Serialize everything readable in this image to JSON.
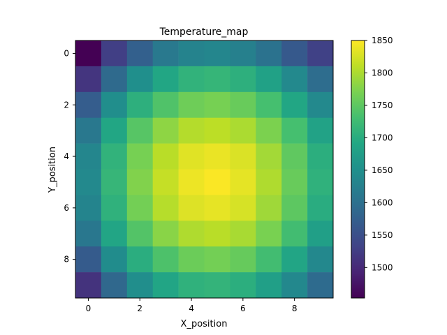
{
  "chart_data": {
    "type": "heatmap",
    "title": "Temperature_map",
    "xlabel": "X_position",
    "ylabel": "Y_position",
    "x_ticks": [
      0,
      2,
      4,
      6,
      8
    ],
    "y_ticks": [
      0,
      2,
      4,
      6,
      8
    ],
    "x_range": [
      -0.5,
      9.5
    ],
    "y_range": [
      -0.5,
      9.5
    ],
    "y_axis_inverted": true,
    "grid": false,
    "colormap": "viridis",
    "colorbar": {
      "min": 1453,
      "max": 1850,
      "ticks": [
        1500,
        1550,
        1600,
        1650,
        1700,
        1750,
        1800,
        1850
      ]
    },
    "values": [
      [
        1453,
        1528,
        1575,
        1613,
        1630,
        1635,
        1625,
        1603,
        1565,
        1530
      ],
      [
        1515,
        1590,
        1650,
        1690,
        1710,
        1715,
        1705,
        1680,
        1640,
        1595
      ],
      [
        1570,
        1648,
        1705,
        1740,
        1762,
        1768,
        1758,
        1732,
        1690,
        1640
      ],
      [
        1612,
        1690,
        1745,
        1783,
        1805,
        1810,
        1800,
        1772,
        1732,
        1682
      ],
      [
        1635,
        1710,
        1768,
        1808,
        1832,
        1838,
        1828,
        1795,
        1752,
        1703
      ],
      [
        1640,
        1716,
        1775,
        1815,
        1840,
        1848,
        1835,
        1802,
        1758,
        1708
      ],
      [
        1632,
        1708,
        1766,
        1806,
        1830,
        1836,
        1826,
        1793,
        1750,
        1700
      ],
      [
        1610,
        1688,
        1742,
        1780,
        1802,
        1808,
        1798,
        1770,
        1728,
        1678
      ],
      [
        1568,
        1645,
        1702,
        1738,
        1760,
        1766,
        1756,
        1728,
        1688,
        1638
      ],
      [
        1512,
        1588,
        1648,
        1688,
        1708,
        1712,
        1703,
        1678,
        1638,
        1592
      ]
    ]
  }
}
